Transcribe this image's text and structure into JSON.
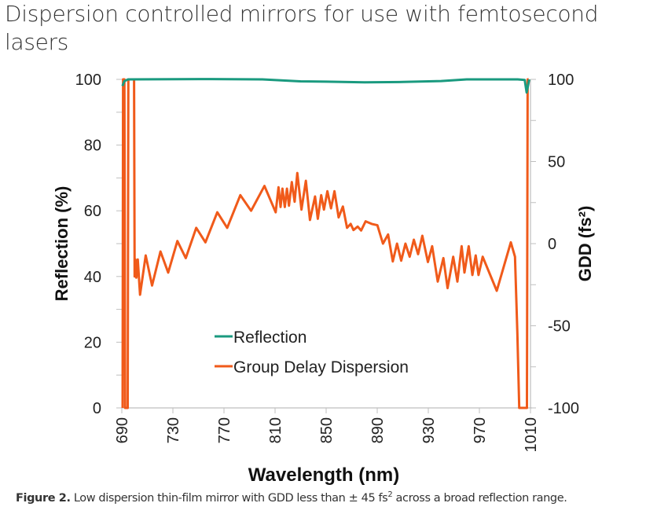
{
  "page": {
    "title": "Dispersion controlled mirrors for use with femtosecond lasers",
    "caption_label": "Figure 2.",
    "caption_text": "Low dispersion thin-film mirror with GDD less than ± 45 fs",
    "caption_sup": "2",
    "caption_tail": " across a broad reflection range."
  },
  "chart_data": {
    "type": "line",
    "title": "",
    "xlabel": "Wavelength (nm)",
    "ylabel": "Reflection (%)",
    "y2label": "GDD (fs²)",
    "xlim": [
      690,
      1010
    ],
    "ylim": [
      0,
      100
    ],
    "y2lim": [
      -100,
      100
    ],
    "xticks": [
      "690",
      "730",
      "770",
      "810",
      "850",
      "890",
      "930",
      "970",
      "1010"
    ],
    "yticks": [
      "0",
      "20",
      "40",
      "60",
      "80",
      "100"
    ],
    "y2ticks": [
      "-100",
      "-50",
      "0",
      "50",
      "100"
    ],
    "legend": {
      "position": "lower-center",
      "entries": [
        "Reflection",
        "Group Delay Dispersion"
      ]
    },
    "colors": {
      "reflection": "#1a9a7f",
      "gdd": "#f05a1a",
      "axis": "#bfbfbf"
    },
    "series": [
      {
        "name": "Reflection",
        "axis": "left",
        "x": [
          690.5,
          692,
          695,
          760,
          800,
          830,
          850,
          880,
          910,
          940,
          960,
          1000,
          1005.5,
          1007,
          1008,
          1009
        ],
        "y": [
          98,
          99.5,
          100,
          100.1,
          100,
          99.4,
          99.3,
          99.1,
          99.2,
          99.5,
          100,
          100,
          99.8,
          96,
          98,
          100
        ]
      },
      {
        "name": "Group Delay Dispersion",
        "axis": "right",
        "x": [
          690.6,
          691,
          692,
          692.6,
          694.6,
          695.1,
          699.6,
          700,
          700.6,
          701.4,
          702.5,
          704.3,
          708.7,
          713.7,
          720.3,
          726.3,
          733.5,
          740.1,
          748.3,
          755.5,
          764.8,
          772.5,
          782.8,
          791.2,
          801.7,
          810.5,
          812.7,
          814.3,
          815.8,
          817.6,
          819.3,
          820.9,
          823.1,
          825.3,
          827.4,
          830.7,
          834.1,
          837.3,
          841.3,
          843.5,
          846.1,
          848.3,
          851.0,
          853.8,
          856.5,
          859.8,
          863.1,
          866.4,
          869.2,
          871.4,
          874.7,
          877.4,
          880.9,
          885.7,
          890.1,
          894.5,
          898.5,
          902.2,
          905.5,
          908.8,
          912.1,
          915.4,
          918.7,
          922.0,
          925.3,
          929.7,
          933.0,
          937.4,
          941.8,
          945.1,
          949.5,
          952.8,
          956.1,
          958.3,
          961.6,
          964.5,
          967.1,
          969.3,
          972.6,
          983.6,
          994.6,
          997.9,
          999.7,
          1001.2,
          1007.2,
          1007.8,
          1008.6
        ],
        "y": [
          -100,
          100,
          100,
          -100,
          -100,
          100,
          100,
          -20,
          -9.6,
          -20.7,
          -9.6,
          -31.1,
          -7.2,
          -25.5,
          -4.8,
          -17.6,
          1.6,
          -8.8,
          9.6,
          0.8,
          19.1,
          9.6,
          29.5,
          20.0,
          35.1,
          19.1,
          34.3,
          22.3,
          33.5,
          22.3,
          33.5,
          23.1,
          37.5,
          25.5,
          43.0,
          20.7,
          38.3,
          14.4,
          28.7,
          15.1,
          29.5,
          20.7,
          31.9,
          21.5,
          31.9,
          16.0,
          22.6,
          9.6,
          12.0,
          8.3,
          10.4,
          8.0,
          13.6,
          12.0,
          11.2,
          0.0,
          5.6,
          -10.8,
          0.0,
          -10.4,
          0.0,
          -8.0,
          2.4,
          -6.4,
          4.8,
          -11.2,
          -1.6,
          -23.1,
          -8.8,
          -27.1,
          -8.0,
          -23.1,
          -1.6,
          -17.6,
          -1.6,
          -19.1,
          -7.2,
          -19.1,
          -8.0,
          -28.7,
          0.8,
          -8.0,
          -54.2,
          -100,
          -100,
          100,
          100
        ]
      }
    ]
  }
}
